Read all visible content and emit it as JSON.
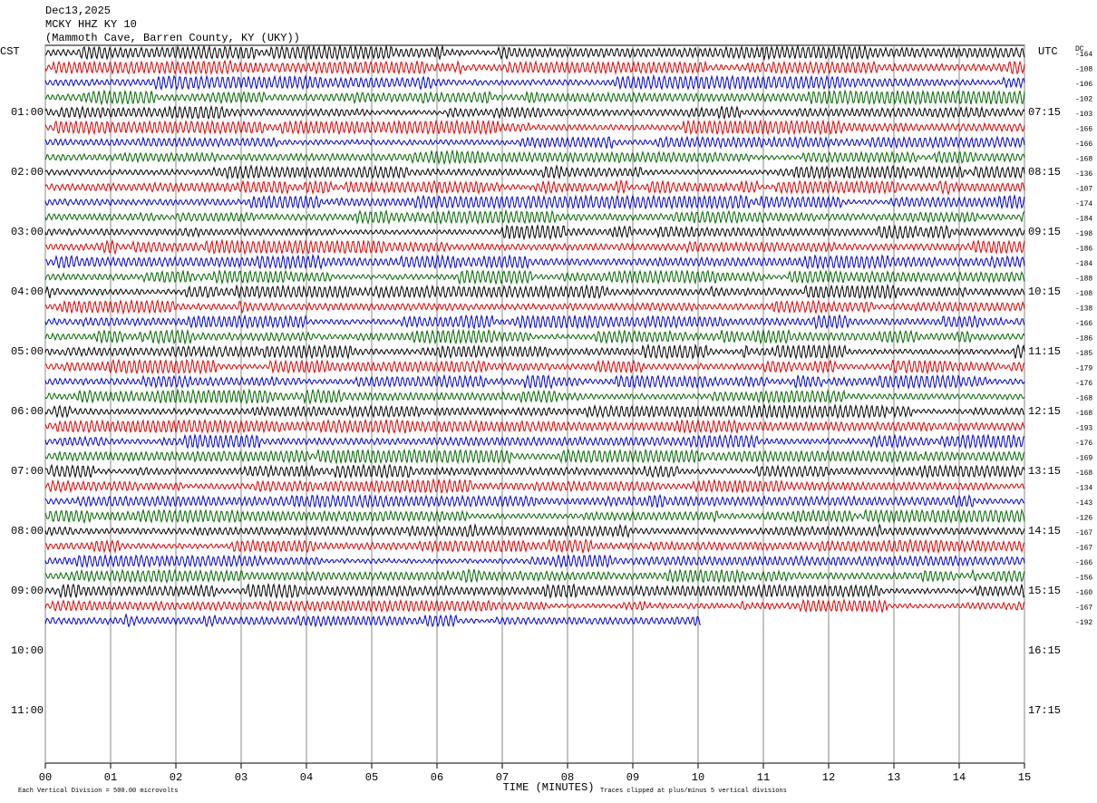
{
  "chart_data": {
    "type": "helicorder",
    "title_lines": [
      "Dec13,2025",
      "MCKY HHZ KY 10",
      "(Mammoth Cave, Barren County, KY (UKY))"
    ],
    "left_zone": "CST",
    "right_zone": "UTC",
    "dc_label": "DC",
    "left_hours": [
      "01:00",
      "02:00",
      "03:00",
      "04:00",
      "05:00",
      "06:00",
      "07:00",
      "08:00",
      "09:00",
      "10:00",
      "11:00"
    ],
    "right_hours": [
      "07:15",
      "08:15",
      "09:15",
      "10:15",
      "11:15",
      "12:15",
      "13:15",
      "14:15",
      "15:15",
      "16:15",
      "17:15"
    ],
    "xlim": [
      0,
      15
    ],
    "xticks": [
      {
        "value": 0,
        "label": "00"
      },
      {
        "value": 1,
        "label": "01"
      },
      {
        "value": 2,
        "label": "02"
      },
      {
        "value": 3,
        "label": "03"
      },
      {
        "value": 4,
        "label": "04"
      },
      {
        "value": 5,
        "label": "05"
      },
      {
        "value": 6,
        "label": "06"
      },
      {
        "value": 7,
        "label": "07"
      },
      {
        "value": 8,
        "label": "08"
      },
      {
        "value": 9,
        "label": "09"
      },
      10,
      11,
      12,
      13,
      14,
      15
    ],
    "x_label": "TIME (MINUTES)",
    "footnote_left": "Each Vertical Division =  500.00 microvolts",
    "footnote_right": "Traces clipped at plus/minus 5 vertical divisions",
    "trace_colors": [
      "#000000",
      "#dd0000",
      "#0000cc",
      "#006600"
    ],
    "last_trace_end_minute": 10.05,
    "dc_values": [
      "-164",
      "-108",
      "-106",
      "-102",
      "-103",
      "-166",
      "-166",
      "-168",
      "-136",
      "-107",
      "-174",
      "-184",
      "-198",
      "-186",
      "-184",
      "-188",
      "-108",
      "-138",
      "-166",
      "-186",
      "-185",
      "-179",
      "-176",
      "-168",
      "-168",
      "-193",
      "-176",
      "-169",
      "-168",
      "-134",
      "-143",
      "-126",
      "-167",
      "-167",
      "-166",
      "-156",
      "-160",
      "-167",
      "-192"
    ]
  }
}
